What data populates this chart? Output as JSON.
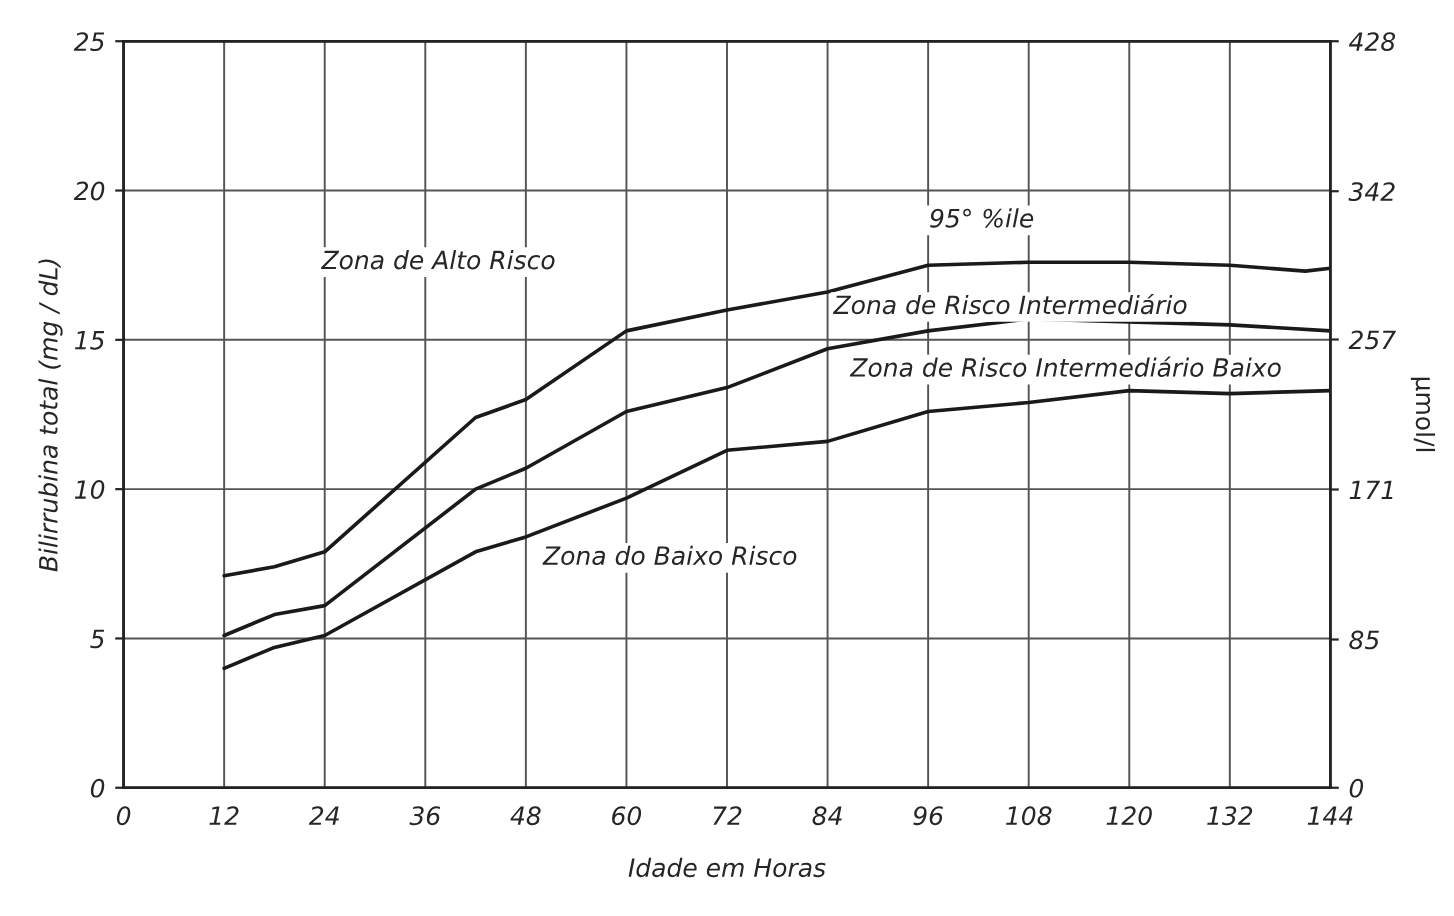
{
  "chart_data": {
    "type": "line",
    "xlabel": "Idade em Horas",
    "ylabel": "Bilirrubina total (mg / dL)",
    "y2label": "µmol/l",
    "xlim": [
      0,
      144
    ],
    "xticks": [
      0,
      12,
      24,
      36,
      48,
      60,
      72,
      84,
      96,
      108,
      120,
      132,
      144
    ],
    "ylim": [
      0,
      25
    ],
    "yticks": [
      0,
      5,
      10,
      15,
      20,
      25
    ],
    "y2lim": [
      0,
      428
    ],
    "y2ticks": [
      {
        "value": 0,
        "label": "0"
      },
      {
        "value": 85,
        "label": "85"
      },
      {
        "value": 171,
        "label": "171"
      },
      {
        "value": 257,
        "label": "257"
      },
      {
        "value": 342,
        "label": "342"
      },
      {
        "value": 428,
        "label": "428"
      }
    ],
    "grid": true,
    "marker": "none",
    "line_style": "solid",
    "series": [
      {
        "color": "#1a1a1a",
        "x": [
          12,
          18,
          24,
          42,
          48,
          60,
          72,
          84,
          96,
          108,
          120,
          132,
          141,
          144
        ],
        "values": [
          7.1,
          7.4,
          7.9,
          12.4,
          13.0,
          15.3,
          16.0,
          16.6,
          17.5,
          17.6,
          17.6,
          17.5,
          17.3,
          17.4
        ]
      },
      {
        "color": "#1a1a1a",
        "x": [
          12,
          18,
          24,
          42,
          48,
          60,
          72,
          84,
          96,
          108,
          120,
          132,
          144
        ],
        "values": [
          5.1,
          5.8,
          6.1,
          10.0,
          10.7,
          12.6,
          13.4,
          14.7,
          15.3,
          15.7,
          15.6,
          15.5,
          15.3
        ]
      },
      {
        "color": "#1a1a1a",
        "x": [
          12,
          18,
          24,
          42,
          48,
          60,
          72,
          84,
          96,
          108,
          120,
          132,
          144
        ],
        "values": [
          4.0,
          4.7,
          5.1,
          7.9,
          8.4,
          9.7,
          11.3,
          11.6,
          12.6,
          12.9,
          13.3,
          13.2,
          13.3
        ]
      }
    ],
    "annotations": [
      "Zona de Alto Risco",
      "95° %ile",
      "Zona de Risco Intermediário",
      "Zona de Risco Intermediário Baixo",
      "Zona do Baixo Risco"
    ]
  }
}
